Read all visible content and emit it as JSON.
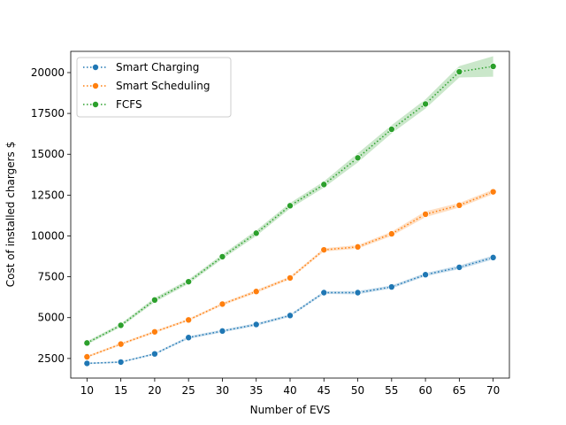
{
  "chart_data": {
    "type": "line",
    "title": "",
    "xlabel": "Number of EVS",
    "ylabel": "Cost of installed chargers $",
    "x": [
      10,
      15,
      20,
      25,
      30,
      35,
      40,
      45,
      50,
      55,
      60,
      65,
      70
    ],
    "x_ticks": [
      10,
      15,
      20,
      25,
      30,
      35,
      40,
      45,
      50,
      55,
      60,
      65,
      70
    ],
    "y_ticks": [
      2500,
      5000,
      7500,
      10000,
      12500,
      15000,
      17500,
      20000
    ],
    "xlim": [
      7.6,
      72.4
    ],
    "ylim": [
      1300,
      21300
    ],
    "grid": false,
    "legend_position": "top-left",
    "series": [
      {
        "name": "Smart Charging",
        "color": "#1f77b4",
        "values": [
          2200,
          2280,
          2780,
          3780,
          4180,
          4580,
          5130,
          6530,
          6530,
          6880,
          7630,
          8080,
          8680
        ],
        "band": [
          [
            2150,
            2250
          ],
          [
            2230,
            2330
          ],
          [
            2720,
            2840
          ],
          [
            3700,
            3860
          ],
          [
            4100,
            4260
          ],
          [
            4500,
            4660
          ],
          [
            5050,
            5210
          ],
          [
            6450,
            6610
          ],
          [
            6430,
            6630
          ],
          [
            6790,
            6970
          ],
          [
            7530,
            7730
          ],
          [
            7970,
            8190
          ],
          [
            8560,
            8800
          ]
        ]
      },
      {
        "name": "Smart Scheduling",
        "color": "#ff7f0e",
        "values": [
          2600,
          3380,
          4130,
          4860,
          5830,
          6600,
          7430,
          9150,
          9330,
          10130,
          11330,
          11880,
          12700
        ],
        "band": [
          [
            2540,
            2660
          ],
          [
            3310,
            3450
          ],
          [
            4060,
            4200
          ],
          [
            4790,
            4930
          ],
          [
            5750,
            5910
          ],
          [
            6510,
            6690
          ],
          [
            7340,
            7520
          ],
          [
            9050,
            9250
          ],
          [
            9220,
            9440
          ],
          [
            10000,
            10260
          ],
          [
            11150,
            11510
          ],
          [
            11740,
            12020
          ],
          [
            12560,
            12840
          ]
        ]
      },
      {
        "name": "FCFS",
        "color": "#2ca02c",
        "values": [
          3450,
          4530,
          6080,
          7200,
          8730,
          10170,
          11850,
          13150,
          14780,
          16530,
          18080,
          20050,
          20380
        ],
        "band": [
          [
            3350,
            3550
          ],
          [
            4430,
            4630
          ],
          [
            5950,
            6210
          ],
          [
            7070,
            7330
          ],
          [
            8590,
            8870
          ],
          [
            10000,
            10340
          ],
          [
            11680,
            12020
          ],
          [
            12960,
            13340
          ],
          [
            14500,
            15060
          ],
          [
            16280,
            16780
          ],
          [
            17800,
            18360
          ],
          [
            19700,
            20400
          ],
          [
            19750,
            21000
          ]
        ]
      }
    ]
  }
}
